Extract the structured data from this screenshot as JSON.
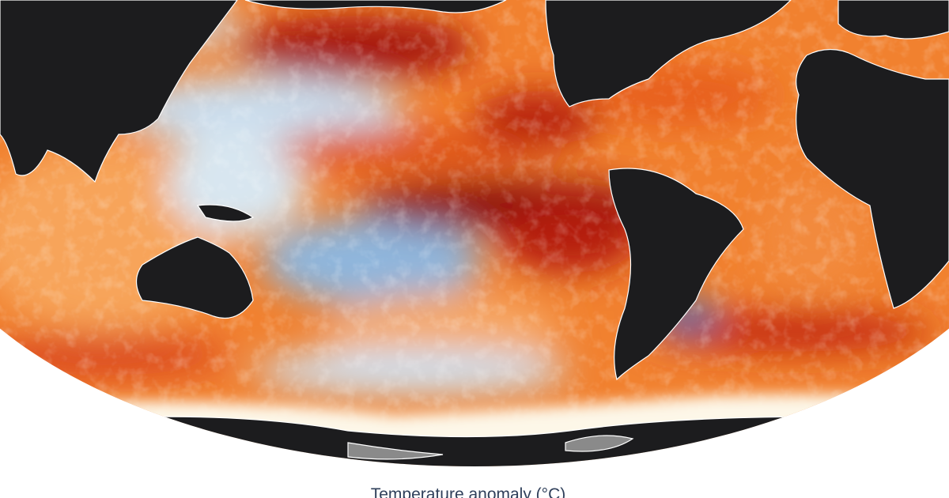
{
  "legend": {
    "title": "Temperature anomaly (°C)"
  }
}
